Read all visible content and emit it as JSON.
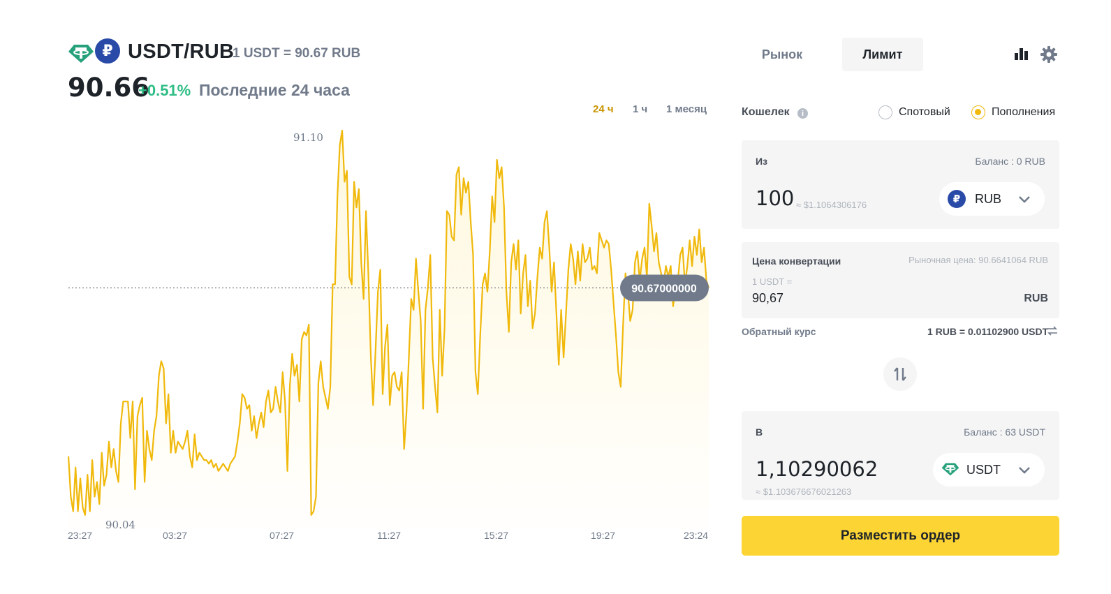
{
  "header": {
    "pair": "USDT/RUB",
    "rate": "1 USDT = 90.67 RUB",
    "price": "90.66",
    "change": "+0.51%",
    "period": "Последние 24 часа"
  },
  "icons": {
    "usdt": "tether-icon",
    "rub": "ruble-icon",
    "chart_toggle": "bar-chart-icon",
    "settings": "gear-icon",
    "info": "info-icon",
    "chevron": "chevron-down-icon",
    "swap": "swap-vertical-icon",
    "inverse": "swap-horizontal-icon"
  },
  "colors": {
    "accent": "#f0b90b",
    "button": "#fcd535",
    "positive": "#2ebd85",
    "line": "#f0b90b",
    "tether": "#26a17b",
    "ruble": "#2a4aa8",
    "active_range": "#c99400"
  },
  "ranges": {
    "r24h": "24 ч",
    "r1h": "1 ч",
    "r1m": "1 месяц",
    "active": "24 ч"
  },
  "chart_data": {
    "type": "line",
    "title": "",
    "xlabel": "",
    "ylabel": "",
    "x_ticks": [
      "23:27",
      "03:27",
      "07:27",
      "11:27",
      "15:27",
      "19:27",
      "23:24"
    ],
    "ylim": [
      90.04,
      91.1
    ],
    "max_label": "91.10",
    "min_label": "90.04",
    "current_price": 90.67,
    "current_label": "90.67000000",
    "grid": false,
    "series": [
      {
        "values": [
          90.21,
          90.1,
          90.06,
          90.18,
          90.06,
          90.15,
          90.07,
          90.05,
          90.16,
          90.06,
          90.2,
          90.1,
          90.14,
          90.08,
          90.22,
          90.13,
          90.16,
          90.25,
          90.18,
          90.23,
          90.17,
          90.14,
          90.3,
          90.36,
          90.36,
          90.36,
          90.26,
          90.36,
          90.12,
          90.32,
          90.35,
          90.37,
          90.14,
          90.28,
          90.23,
          90.2,
          90.28,
          90.32,
          90.43,
          90.47,
          90.45,
          90.3,
          90.38,
          90.22,
          90.28,
          90.22,
          90.25,
          90.24,
          90.23,
          90.25,
          90.28,
          90.21,
          90.18,
          90.27,
          90.2,
          90.22,
          90.21,
          90.2,
          90.2,
          90.19,
          90.2,
          90.18,
          90.19,
          90.17,
          90.18,
          90.19,
          90.18,
          90.17,
          90.19,
          90.2,
          90.21,
          90.25,
          90.3,
          90.38,
          90.37,
          90.34,
          90.35,
          90.28,
          90.32,
          90.26,
          90.3,
          90.33,
          90.29,
          90.36,
          90.39,
          90.33,
          90.34,
          90.4,
          90.36,
          90.33,
          90.44,
          90.36,
          90.17,
          90.4,
          90.49,
          90.43,
          90.46,
          90.36,
          90.53,
          90.55,
          90.54,
          90.57,
          90.05,
          90.06,
          90.1,
          90.41,
          90.47,
          90.4,
          90.37,
          90.34,
          90.4,
          90.68,
          90.68,
          90.92,
          91.06,
          91.1,
          90.96,
          90.99,
          90.7,
          90.68,
          90.96,
          90.89,
          90.94,
          90.74,
          90.64,
          90.88,
          90.71,
          90.49,
          90.35,
          90.5,
          90.66,
          90.72,
          90.38,
          90.51,
          90.57,
          90.35,
          90.43,
          90.44,
          90.4,
          90.39,
          90.44,
          90.23,
          90.33,
          90.48,
          90.64,
          90.61,
          90.75,
          90.66,
          90.58,
          90.34,
          90.61,
          90.67,
          90.76,
          90.48,
          90.4,
          90.33,
          90.61,
          90.43,
          90.56,
          90.88,
          90.87,
          90.81,
          90.8,
          90.98,
          91.0,
          90.87,
          90.97,
          90.93,
          90.96,
          90.85,
          90.76,
          90.44,
          90.38,
          90.54,
          90.68,
          90.71,
          90.66,
          90.77,
          90.92,
          90.85,
          91.02,
          90.97,
          91.0,
          90.89,
          90.66,
          90.55,
          90.74,
          90.79,
          90.72,
          90.8,
          90.6,
          90.71,
          90.76,
          90.62,
          90.69,
          90.56,
          90.6,
          90.7,
          90.78,
          90.75,
          90.85,
          90.88,
          90.78,
          90.66,
          90.74,
          90.6,
          90.46,
          90.61,
          90.48,
          90.6,
          90.72,
          90.79,
          90.75,
          90.68,
          90.77,
          90.69,
          90.79,
          90.74,
          90.75,
          90.78,
          90.72,
          90.73,
          90.71,
          90.82,
          90.8,
          90.78,
          90.8,
          90.79,
          90.72,
          90.63,
          90.54,
          90.44,
          90.4,
          90.57,
          90.71,
          90.66,
          90.58,
          90.61,
          90.74,
          90.77,
          90.69,
          90.75,
          90.78,
          90.7,
          90.9,
          90.84,
          90.77,
          90.82,
          90.74,
          90.71,
          90.68,
          90.73,
          90.7,
          90.73,
          90.62,
          90.67,
          90.69,
          90.76,
          90.78,
          90.68,
          90.73,
          90.8,
          90.73,
          90.81,
          90.76,
          90.83,
          90.74,
          90.78,
          90.69,
          90.67
        ]
      }
    ]
  },
  "panel": {
    "tab_market": "Рынок",
    "tab_limit": "Лимит",
    "wallet_label": "Кошелек",
    "radio_spot": "Спотовый",
    "radio_funding": "Пополнения",
    "radio_selected": "Пополнения",
    "from": {
      "label": "Из",
      "balance": "Баланс : 0 RUB",
      "amount": "100",
      "approx": "≈ $1.1064306176",
      "asset": "RUB"
    },
    "price_card": {
      "label": "Цена конвертации",
      "market_price": "Рыночная цена: 90.6641064 RUB",
      "base": "1 USDT =",
      "value": "90,67",
      "currency": "RUB"
    },
    "inverse_label": "Обратный курс",
    "inverse_value": "1 RUB = 0.01102900 USDT",
    "to": {
      "label": "В",
      "balance": "Баланс : 63 USDT",
      "amount": "1,10290062",
      "approx": "≈ $1.103676676021263",
      "asset": "USDT"
    },
    "submit": "Разместить ордер"
  }
}
